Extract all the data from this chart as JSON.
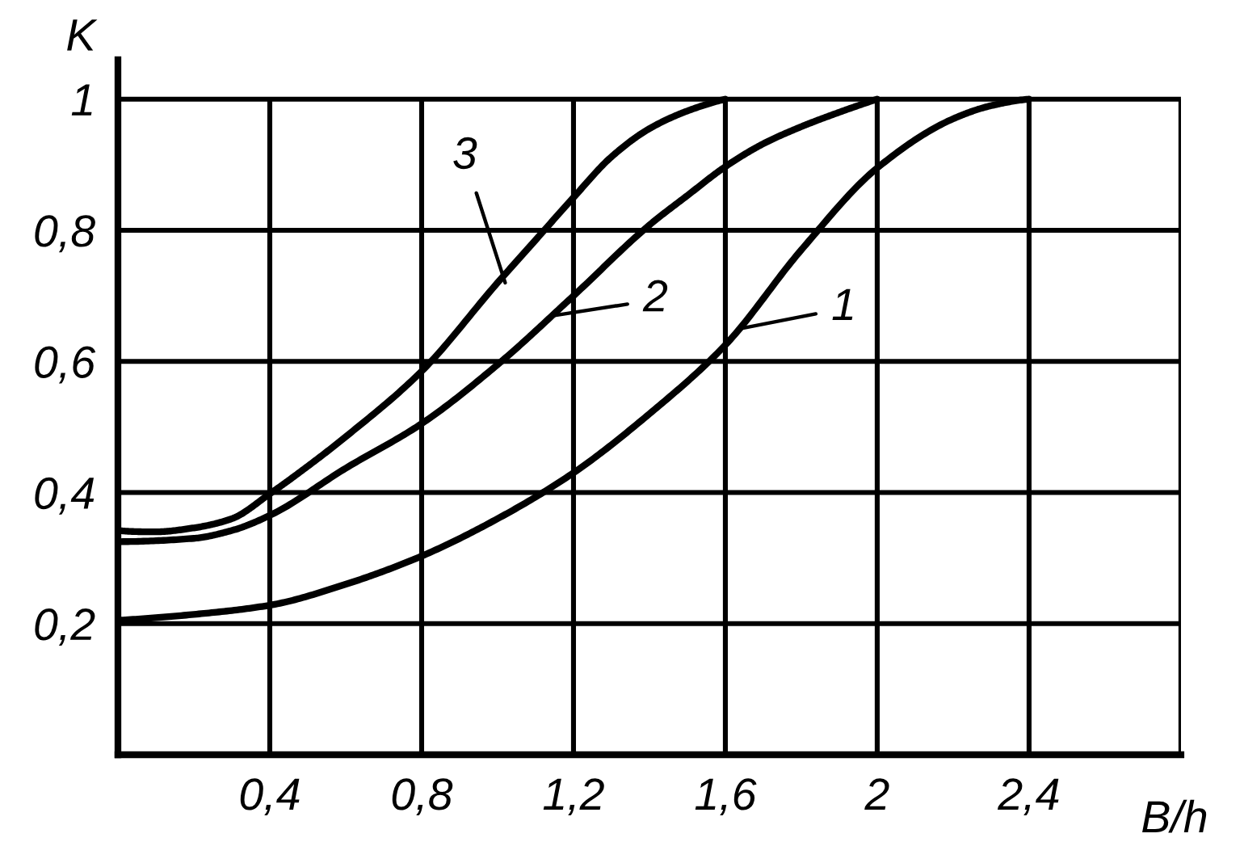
{
  "chart_data": {
    "type": "line",
    "xlabel": "B/h",
    "ylabel": "K",
    "xlim": [
      0,
      2.8
    ],
    "ylim": [
      0,
      1.06
    ],
    "xticks": [
      {
        "value": 0.4,
        "label": "0,4"
      },
      {
        "value": 0.8,
        "label": "0,8"
      },
      {
        "value": 1.2,
        "label": "1,2"
      },
      {
        "value": 1.6,
        "label": "1,6"
      },
      2,
      {
        "value": 2.4,
        "label": "2,4"
      },
      {
        "value": 2.8,
        "label": null
      }
    ],
    "yticks": [
      {
        "value": 0.2,
        "label": "0,2"
      },
      {
        "value": 0.4,
        "label": "0,4"
      },
      {
        "value": 0.6,
        "label": "0,6"
      },
      {
        "value": 0.8,
        "label": "0,8"
      },
      1
    ],
    "grid": true,
    "marker": "none",
    "line_style": "solid",
    "series": [
      {
        "color": "#000000",
        "x": [
          0,
          0.2,
          0.4,
          0.6,
          0.8,
          1.0,
          1.2,
          1.4,
          1.6,
          1.8,
          2.0,
          2.2,
          2.3,
          2.4
        ],
        "values": [
          0.205,
          0.214,
          0.228,
          0.26,
          0.303,
          0.36,
          0.43,
          0.52,
          0.625,
          0.77,
          0.895,
          0.97,
          0.99,
          1.0
        ]
      },
      {
        "color": "#000000",
        "x": [
          0,
          0.2,
          0.3,
          0.4,
          0.6,
          0.8,
          1.0,
          1.2,
          1.4,
          1.5,
          1.6,
          1.7,
          1.8,
          1.9,
          2.0
        ],
        "values": [
          0.325,
          0.33,
          0.342,
          0.365,
          0.437,
          0.505,
          0.595,
          0.7,
          0.808,
          0.853,
          0.897,
          0.932,
          0.958,
          0.98,
          1.0
        ]
      },
      {
        "color": "#000000",
        "x": [
          0,
          0.1,
          0.2,
          0.3,
          0.4,
          0.5,
          0.6,
          0.8,
          1.0,
          1.1,
          1.2,
          1.3,
          1.4,
          1.5,
          1.6
        ],
        "values": [
          0.342,
          0.34,
          0.346,
          0.36,
          0.398,
          0.44,
          0.485,
          0.585,
          0.72,
          0.785,
          0.85,
          0.912,
          0.955,
          0.982,
          1.0
        ]
      }
    ],
    "annotations": [
      {
        "text": "3",
        "x": 1.02,
        "y": 0.72
      },
      {
        "text": "2",
        "x": 1.15,
        "y": 0.67
      },
      {
        "text": "1",
        "x": 1.64,
        "y": 0.65
      }
    ]
  }
}
